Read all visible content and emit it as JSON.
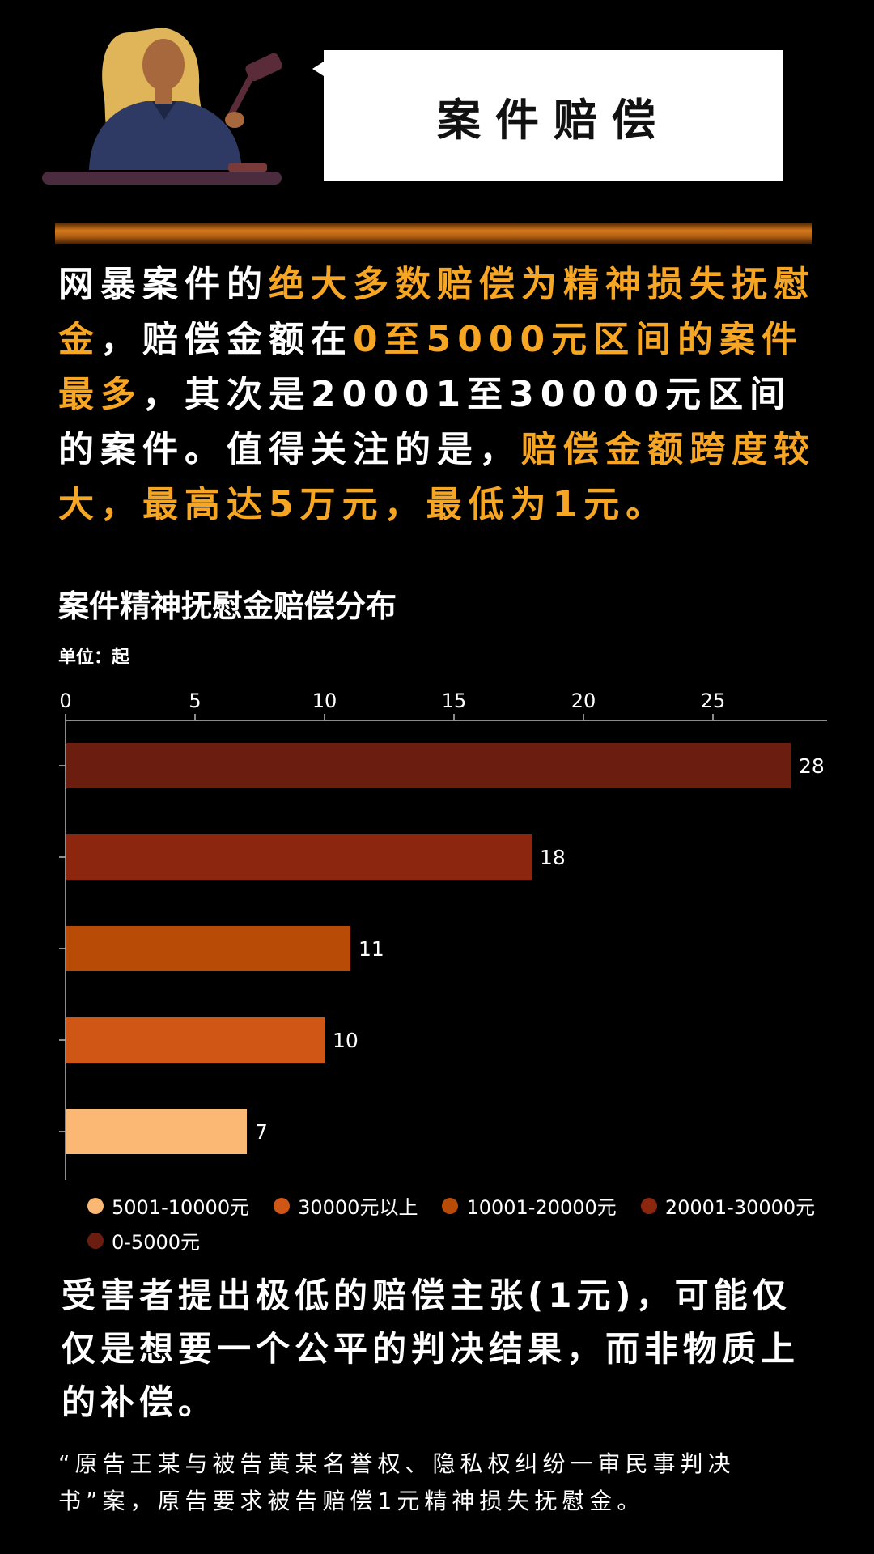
{
  "header": {
    "title": "案件赔偿"
  },
  "intro": {
    "segments": [
      {
        "text": "网暴案件的",
        "hl": false
      },
      {
        "text": "绝大多数赔偿为精神损失抚慰金",
        "hl": true
      },
      {
        "text": "，赔偿金额在",
        "hl": false
      },
      {
        "text": "0至5000元区间的案件最多",
        "hl": true
      },
      {
        "text": "，其次是20001至30000元区间的案件。值得关注的是，",
        "hl": false
      },
      {
        "text": "赔偿金额跨度较大，最高达5万元，最低为1元。",
        "hl": true
      }
    ]
  },
  "colors": {
    "highlight": "#f6a623",
    "background": "#000000"
  },
  "chart_data": {
    "type": "bar",
    "orientation": "horizontal",
    "title": "案件精神抚慰金赔偿分布",
    "unit_label": "单位：起",
    "xlim": [
      0,
      28
    ],
    "ticks": [
      0,
      5,
      10,
      15,
      20,
      25
    ],
    "bars": [
      {
        "category": "0-5000元",
        "value": 28,
        "color": "#6b1e10"
      },
      {
        "category": "20001-30000元",
        "value": 18,
        "color": "#8c260e"
      },
      {
        "category": "10001-20000元",
        "value": 11,
        "color": "#b84c06"
      },
      {
        "category": "30000元以上",
        "value": 10,
        "color": "#cf5614"
      },
      {
        "category": "5001-10000元",
        "value": 7,
        "color": "#fbb875"
      }
    ],
    "legend": [
      {
        "label": "5001-10000元",
        "color": "#fbb875"
      },
      {
        "label": "30000元以上",
        "color": "#cf5614"
      },
      {
        "label": "10001-20000元",
        "color": "#b84c06"
      },
      {
        "label": "20001-30000元",
        "color": "#8c260e"
      },
      {
        "label": "0-5000元",
        "color": "#6b1e10"
      }
    ],
    "legend_position": "bottom"
  },
  "note": {
    "text": "受害者提出极低的赔偿主张(1元)，可能仅仅是想要一个公平的判决结果，而非物质上的补偿。"
  },
  "quote": {
    "text": "“原告王某与被告黄某名誉权、隐私权纠纷一审民事判决书”案，原告要求被告赔偿1元精神损失抚慰金。"
  }
}
